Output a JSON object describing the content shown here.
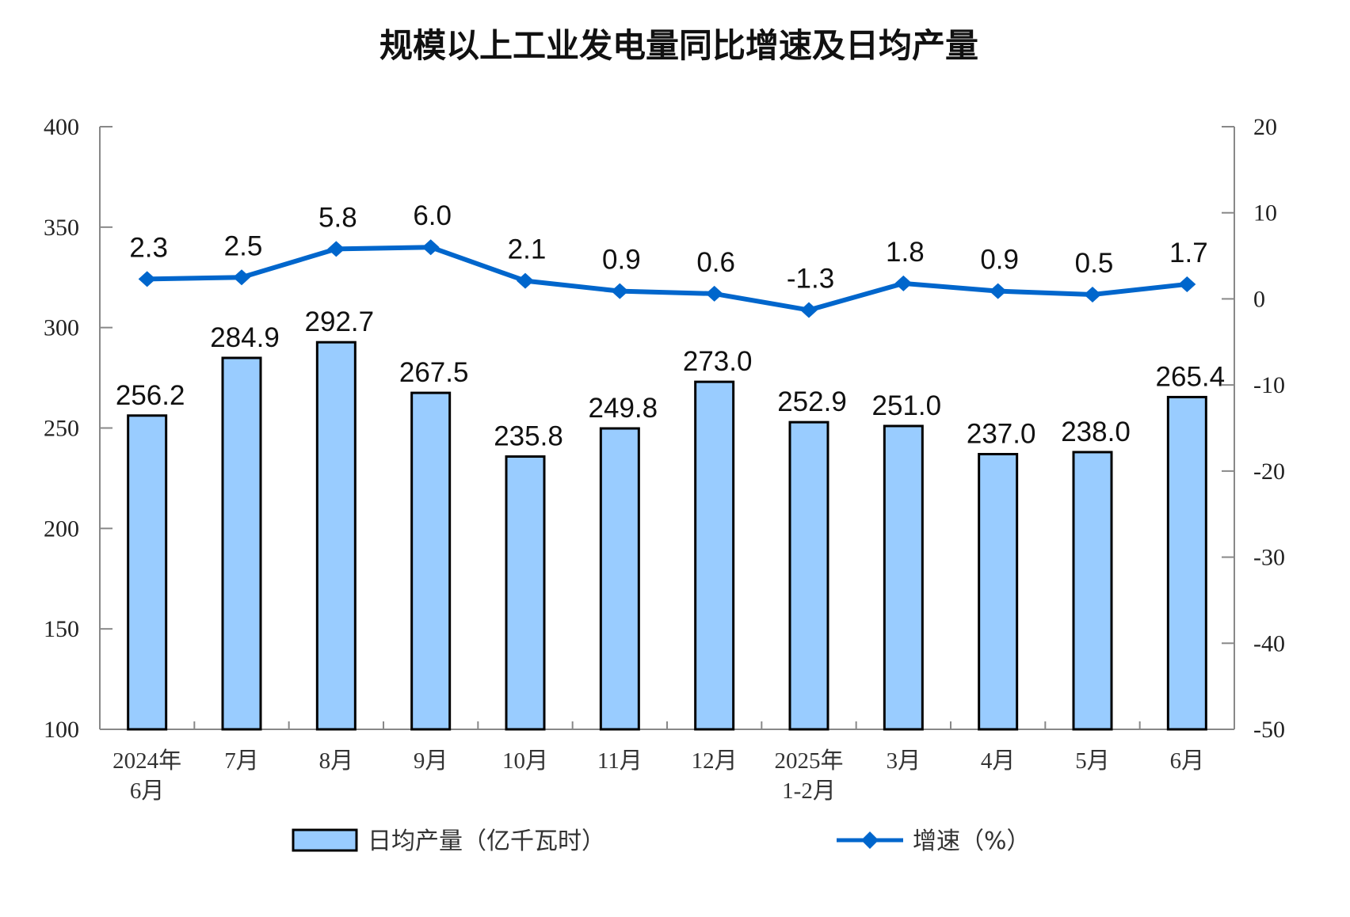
{
  "chart_data": {
    "type": "bar+line",
    "title": "规模以上工业发电量同比增速及日均产量",
    "categories": [
      [
        "2024年",
        "6月"
      ],
      [
        "7月"
      ],
      [
        "8月"
      ],
      [
        "9月"
      ],
      [
        "10月"
      ],
      [
        "11月"
      ],
      [
        "12月"
      ],
      [
        "2025年",
        "1-2月"
      ],
      [
        "3月"
      ],
      [
        "4月"
      ],
      [
        "5月"
      ],
      [
        "6月"
      ]
    ],
    "series": [
      {
        "name": "日均产量（亿千瓦时）",
        "type": "bar",
        "axis": "left",
        "values": [
          256.2,
          284.9,
          292.7,
          267.5,
          235.8,
          249.8,
          273.0,
          252.9,
          251.0,
          237.0,
          238.0,
          265.4
        ],
        "labels": [
          "256.2",
          "284.9",
          "292.7",
          "267.5",
          "235.8",
          "249.8",
          "273.0",
          "252.9",
          "251.0",
          "237.0",
          "238.0",
          "265.4"
        ]
      },
      {
        "name": "增速（%）",
        "type": "line",
        "axis": "right",
        "values": [
          2.3,
          2.5,
          5.8,
          6.0,
          2.1,
          0.9,
          0.6,
          -1.3,
          1.8,
          0.9,
          0.5,
          1.7
        ],
        "labels": [
          "2.3",
          "2.5",
          "5.8",
          "6.0",
          "2.1",
          "0.9",
          "0.6",
          "-1.3",
          "1.8",
          "0.9",
          "0.5",
          "1.7"
        ]
      }
    ],
    "y_left": {
      "range": [
        100,
        400
      ],
      "ticks": [
        "400",
        "350",
        "300",
        "250",
        "200",
        "150",
        "100"
      ]
    },
    "y_right": {
      "range": [
        -50,
        20
      ],
      "ticks": [
        "20",
        "10",
        "0",
        "-10",
        "-20",
        "-30",
        "-40",
        "-50"
      ]
    },
    "grid": false,
    "legend": "bottom",
    "colors": {
      "bar": "#99CCFF",
      "bar_border": "#000000",
      "line": "#0066CC",
      "axis": "#888888"
    }
  }
}
